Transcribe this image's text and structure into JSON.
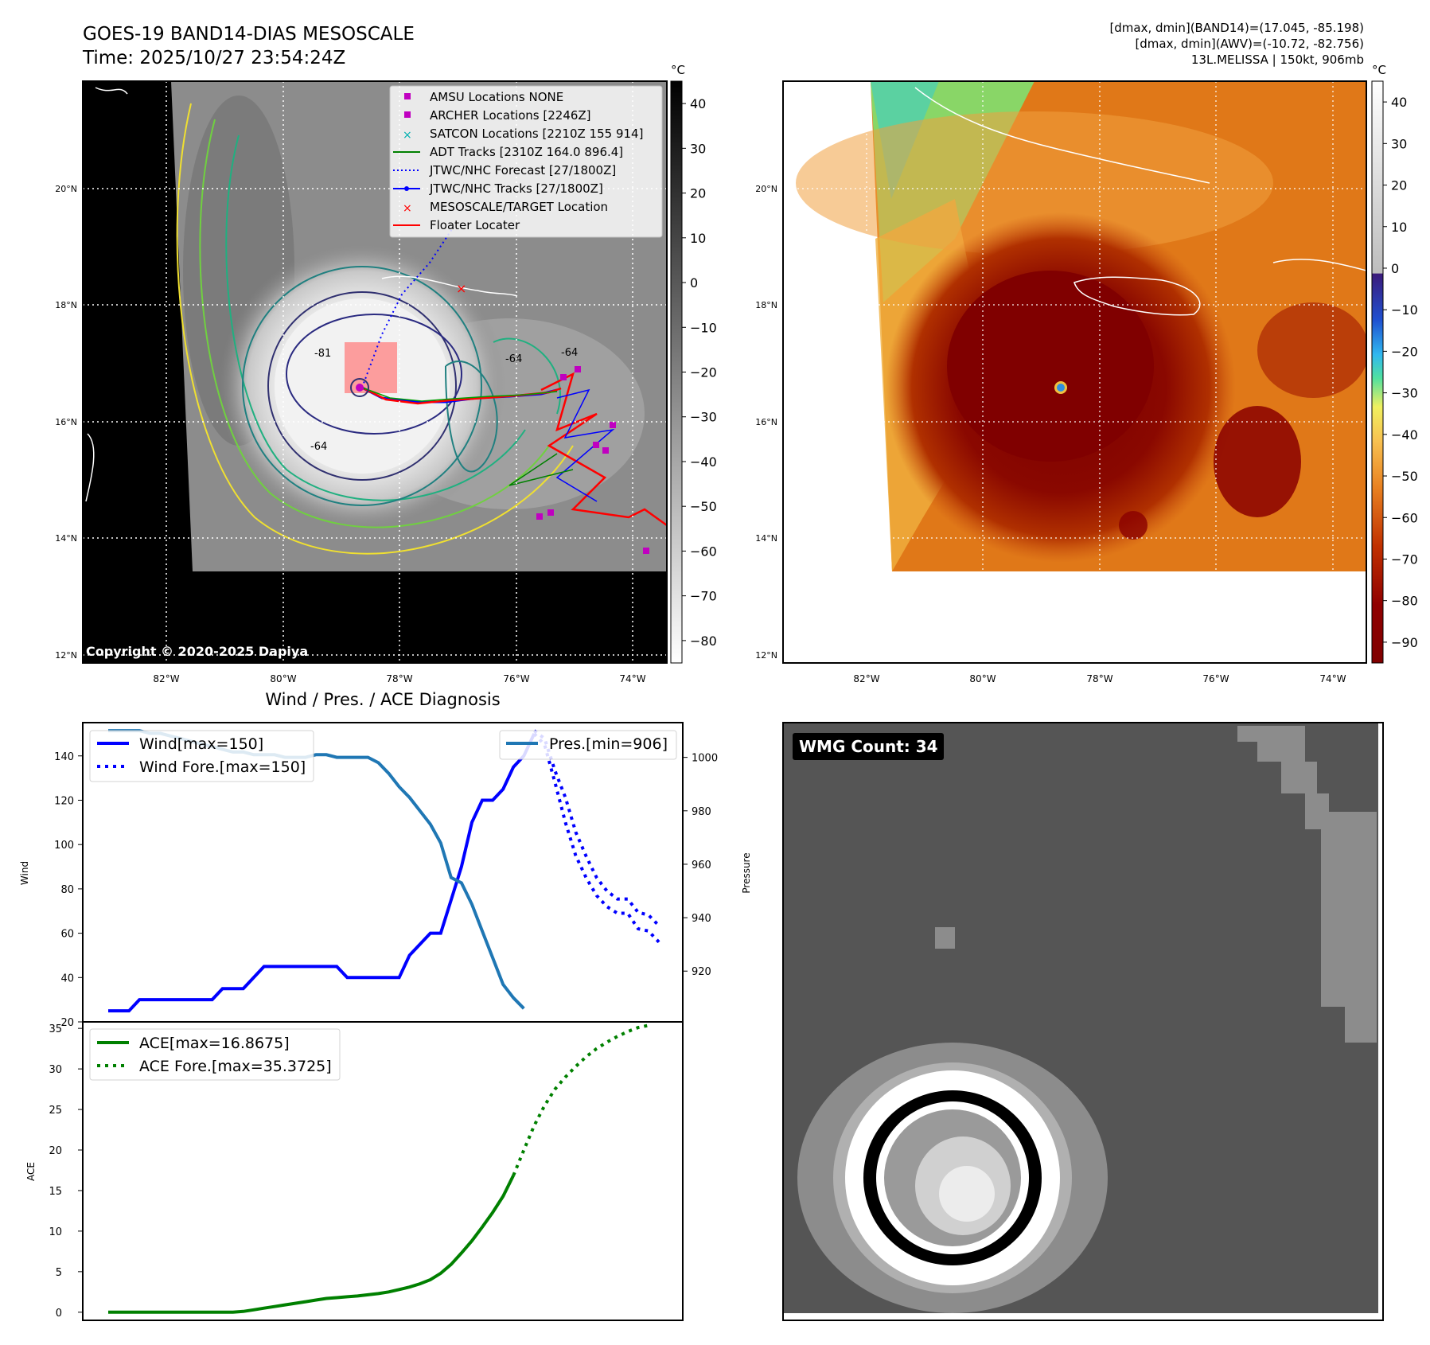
{
  "header": {
    "title_line1": "GOES-19 BAND14-DIAS MESOSCALE",
    "title_line2": "Time: 2025/10/27 23:54:24Z",
    "stats_line1": "[dmax, dmin](BAND14)=(17.045, -85.198)",
    "stats_line2": "[dmax, dmin](AWV)=(-10.72, -82.756)",
    "stats_line3": "13L.MELISSA | 150kt, 906mb"
  },
  "map": {
    "lat_labels": [
      "20°N",
      "18°N",
      "16°N",
      "14°N",
      "12°N"
    ],
    "lon_labels": [
      "82°W",
      "80°W",
      "78°W",
      "76°W",
      "74°W"
    ],
    "copyright": "Copyright © 2020-2025 Dapiya",
    "contour_labels": [
      "-81",
      "-64",
      "-64",
      "-64"
    ],
    "legend": [
      {
        "label": "AMSU Locations NONE",
        "color": "#c000c0",
        "kind": "square"
      },
      {
        "label": "ARCHER Locations [2246Z]",
        "color": "#c000c0",
        "kind": "square"
      },
      {
        "label": "SATCON Locations [2210Z 155 914]",
        "color": "#00b0b0",
        "kind": "x"
      },
      {
        "label": "ADT Tracks [2310Z 164.0 896.4]",
        "color": "#008000",
        "kind": "line"
      },
      {
        "label": "JTWC/NHC Forecast [27/1800Z]",
        "color": "#0000ff",
        "kind": "dotted"
      },
      {
        "label": "JTWC/NHC Tracks [27/1800Z]",
        "color": "#0000ff",
        "kind": "line-dot"
      },
      {
        "label": "MESOSCALE/TARGET Location",
        "color": "#ff0000",
        "kind": "x"
      },
      {
        "label": "Floater Locater",
        "color": "#ff0000",
        "kind": "line"
      }
    ]
  },
  "colorbar_gray": {
    "unit": "°C",
    "ticks": [
      "40",
      "30",
      "20",
      "10",
      "0",
      "−10",
      "−20",
      "−30",
      "−40",
      "−50",
      "−60",
      "−70",
      "−80"
    ]
  },
  "colorbar_color": {
    "unit": "°C",
    "ticks": [
      "40",
      "30",
      "20",
      "10",
      "0",
      "−10",
      "−20",
      "−30",
      "−40",
      "−50",
      "−60",
      "−70",
      "−80",
      "−90"
    ]
  },
  "chart_data": [
    {
      "type": "line",
      "title": "Wind / Pres. / ACE Diagnosis",
      "ylabel": "Wind",
      "ylabel_right": "Pressure",
      "ylim": [
        20,
        155
      ],
      "ylim_right": [
        901,
        1013
      ],
      "yticks": [
        20,
        40,
        60,
        80,
        100,
        120,
        140
      ],
      "yticks_right": [
        920,
        940,
        960,
        980,
        1000
      ],
      "x_count": 54,
      "series": [
        {
          "name": "Wind[max=150]",
          "axis": "left",
          "style": "solid",
          "color": "#0000ff",
          "x_start": 0,
          "values": [
            25,
            25,
            25,
            30,
            30,
            30,
            30,
            30,
            30,
            30,
            30,
            35,
            35,
            35,
            40,
            45,
            45,
            45,
            45,
            45,
            45,
            45,
            45,
            40,
            40,
            40,
            40,
            40,
            40,
            50,
            55,
            60,
            60,
            75,
            90,
            110,
            120,
            120,
            125,
            135,
            140,
            150
          ]
        },
        {
          "name": "Wind Fore.[max=150]",
          "axis": "left",
          "style": "dotted",
          "color": "#0000ff",
          "x_start": 41,
          "values": [
            150,
            145,
            128,
            110,
            95,
            85,
            77,
            72,
            69,
            69,
            62,
            61,
            56
          ]
        },
        {
          "name": "Pres.[min=906]",
          "axis": "right",
          "style": "solid",
          "color": "#1f77b4",
          "x_start": 0,
          "values": [
            1010,
            1010,
            1010,
            1010,
            1009,
            1009,
            1008,
            1007,
            1006,
            1005,
            1004,
            1003,
            1002,
            1002,
            1001,
            1001,
            1001,
            1000,
            1000,
            1000,
            1001,
            1001,
            1000,
            1000,
            1000,
            1000,
            998,
            994,
            989,
            985,
            980,
            975,
            968,
            955,
            953,
            945,
            935,
            925,
            915,
            910,
            906
          ]
        },
        {
          "name": "Pres.[min=906]",
          "axis": "right",
          "style": "dotted",
          "color": "#0000ff",
          "x_start": 41,
          "values": [
            1010,
            1007,
            995,
            985,
            972,
            963,
            955,
            950,
            947,
            947,
            942,
            941,
            937
          ]
        }
      ],
      "legend_left": [
        "Wind[max=150]",
        "Wind Fore.[max=150]"
      ],
      "legend_right": [
        "Pres.[min=906]"
      ]
    },
    {
      "type": "line",
      "ylabel": "ACE",
      "ylim": [
        -1,
        35.8
      ],
      "yticks": [
        0,
        5,
        10,
        15,
        20,
        25,
        30,
        35
      ],
      "x_count": 54,
      "series": [
        {
          "name": "ACE[max=16.8675]",
          "style": "solid",
          "color": "#008000",
          "x_start": 0,
          "values": [
            0,
            0,
            0,
            0,
            0,
            0,
            0,
            0,
            0,
            0,
            0,
            0,
            0,
            0.1,
            0.3,
            0.5,
            0.7,
            0.9,
            1.1,
            1.3,
            1.5,
            1.7,
            1.8,
            1.9,
            2.0,
            2.15,
            2.3,
            2.5,
            2.8,
            3.1,
            3.5,
            4.0,
            4.8,
            5.9,
            7.3,
            8.8,
            10.5,
            12.3,
            14.3,
            16.87
          ]
        },
        {
          "name": "ACE Fore.[max=35.3725]",
          "style": "dotted",
          "color": "#008000",
          "x_start": 39,
          "values": [
            16.87,
            20,
            23,
            25.5,
            27.5,
            29,
            30.3,
            31.5,
            32.5,
            33.3,
            34,
            34.6,
            35.1,
            35.37
          ]
        }
      ],
      "legend": [
        "ACE[max=16.8675]",
        "ACE Fore.[max=35.3725]"
      ]
    }
  ],
  "wmg": {
    "count_label": "WMG Count: 34"
  }
}
